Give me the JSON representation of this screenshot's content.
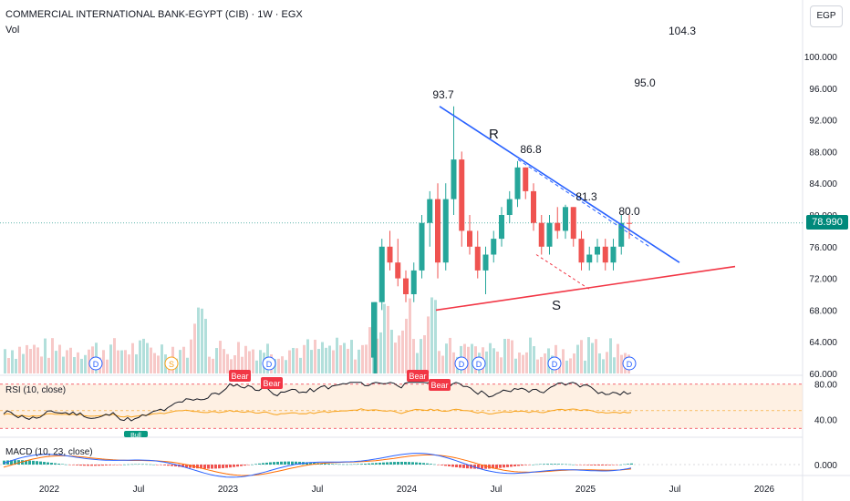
{
  "header": {
    "title": "COMMERCIAL INTERNATIONAL BANK-EGYPT (CIB) · 1W · EGX",
    "volume_label": "Vol",
    "currency": "EGP",
    "last_price": "78.990"
  },
  "panes": {
    "rsi_label": "RSI (10, close)",
    "macd_label": "MACD (10, 23, close)"
  },
  "annotations": {
    "resistance_label": "R",
    "support_label": "S",
    "peaks": [
      "93.7",
      "86.8",
      "81.3",
      "80.0"
    ],
    "targets": [
      "104.3",
      "95.0"
    ],
    "dividend_marker": "D",
    "split_marker": "S",
    "bear_label": "Bear",
    "bull_label": "Bull"
  },
  "colors": {
    "up": "#26a69a",
    "down": "#ef5350",
    "resistance": "#2962ff",
    "support": "#f23645",
    "rsi": "#131722",
    "rsi_ma": "#f7a21b",
    "macd": "#2962ff",
    "signal": "#ff6d00"
  },
  "chart_data": {
    "type": "candlestick",
    "title": "COMMERCIAL INTERNATIONAL BANK-EGYPT (CIB) · 1W · EGX",
    "x_tick_labels": [
      "2022",
      "Jul",
      "2023",
      "Jul",
      "2024",
      "Jul",
      "2025",
      "Jul",
      "2026"
    ],
    "price_axis": {
      "ticks": [
        "100.000",
        "96.000",
        "92.000",
        "88.000",
        "84.000",
        "80.000",
        "76.000",
        "72.000",
        "68.000",
        "64.000",
        "60.000"
      ],
      "ylim": [
        60,
        104
      ]
    },
    "rsi_axis": {
      "ticks": [
        "80.00",
        "40.00"
      ],
      "ylim": [
        20,
        90
      ]
    },
    "macd_axis": {
      "ticks": [
        "0.000"
      ]
    },
    "candles": [
      {
        "date": "2023-10",
        "o": 62,
        "h": 69,
        "l": 60,
        "c": 69
      },
      {
        "date": "2023-11",
        "o": 69,
        "h": 77,
        "l": 68,
        "c": 76
      },
      {
        "date": "2023-11",
        "o": 76,
        "h": 78,
        "l": 73,
        "c": 74
      },
      {
        "date": "2023-12",
        "o": 74,
        "h": 77,
        "l": 71,
        "c": 72
      },
      {
        "date": "2023-12",
        "o": 72,
        "h": 73,
        "l": 69,
        "c": 70
      },
      {
        "date": "2024-01",
        "o": 70,
        "h": 74,
        "l": 69,
        "c": 73
      },
      {
        "date": "2024-01",
        "o": 73,
        "h": 80,
        "l": 72,
        "c": 79
      },
      {
        "date": "2024-01",
        "o": 79,
        "h": 83,
        "l": 76,
        "c": 82
      },
      {
        "date": "2024-02",
        "o": 82,
        "h": 84,
        "l": 72,
        "c": 74
      },
      {
        "date": "2024-02",
        "o": 74,
        "h": 84,
        "l": 73,
        "c": 82
      },
      {
        "date": "2024-03",
        "o": 82,
        "h": 93.7,
        "l": 80,
        "c": 87
      },
      {
        "date": "2024-03",
        "o": 87,
        "h": 88,
        "l": 76,
        "c": 78
      },
      {
        "date": "2024-04",
        "o": 78,
        "h": 80,
        "l": 75,
        "c": 76
      },
      {
        "date": "2024-04",
        "o": 76,
        "h": 78,
        "l": 72,
        "c": 73
      },
      {
        "date": "2024-05",
        "o": 73,
        "h": 76,
        "l": 70,
        "c": 75
      },
      {
        "date": "2024-05",
        "o": 75,
        "h": 78,
        "l": 74,
        "c": 77
      },
      {
        "date": "2024-06",
        "o": 77,
        "h": 81,
        "l": 76,
        "c": 80
      },
      {
        "date": "2024-06",
        "o": 80,
        "h": 83,
        "l": 79,
        "c": 82
      },
      {
        "date": "2024-07",
        "o": 82,
        "h": 86.8,
        "l": 81,
        "c": 86
      },
      {
        "date": "2024-07",
        "o": 86,
        "h": 86,
        "l": 82,
        "c": 83
      },
      {
        "date": "2024-08",
        "o": 83,
        "h": 84,
        "l": 78,
        "c": 79
      },
      {
        "date": "2024-08",
        "o": 79,
        "h": 80,
        "l": 75,
        "c": 76
      },
      {
        "date": "2024-09",
        "o": 76,
        "h": 80,
        "l": 75,
        "c": 79
      },
      {
        "date": "2024-09",
        "o": 79,
        "h": 81,
        "l": 77,
        "c": 78
      },
      {
        "date": "2024-10",
        "o": 78,
        "h": 81.3,
        "l": 77,
        "c": 81
      },
      {
        "date": "2024-10",
        "o": 81,
        "h": 81,
        "l": 76,
        "c": 77
      },
      {
        "date": "2024-11",
        "o": 77,
        "h": 78,
        "l": 73,
        "c": 74
      },
      {
        "date": "2024-11",
        "o": 74,
        "h": 76,
        "l": 73,
        "c": 75
      },
      {
        "date": "2024-12",
        "o": 75,
        "h": 77,
        "l": 74,
        "c": 76
      },
      {
        "date": "2024-12",
        "o": 76,
        "h": 77,
        "l": 73,
        "c": 74
      },
      {
        "date": "2025-01",
        "o": 74,
        "h": 77,
        "l": 73,
        "c": 76
      },
      {
        "date": "2025-02",
        "o": 76,
        "h": 80.0,
        "l": 75,
        "c": 79
      },
      {
        "date": "2025-02",
        "o": 79,
        "h": 80,
        "l": 77,
        "c": 78.99
      }
    ],
    "trendlines": [
      {
        "name": "R",
        "from": {
          "date": "2024-03",
          "price": 93.7
        },
        "to": {
          "date": "2025-05",
          "price": 74
        }
      },
      {
        "name": "S",
        "from": {
          "date": "2024-03",
          "price": 68
        },
        "to": {
          "date": "2025-07",
          "price": 73.5
        }
      }
    ],
    "projected_targets": [
      104.3,
      95.0
    ],
    "last_close": 78.99
  }
}
